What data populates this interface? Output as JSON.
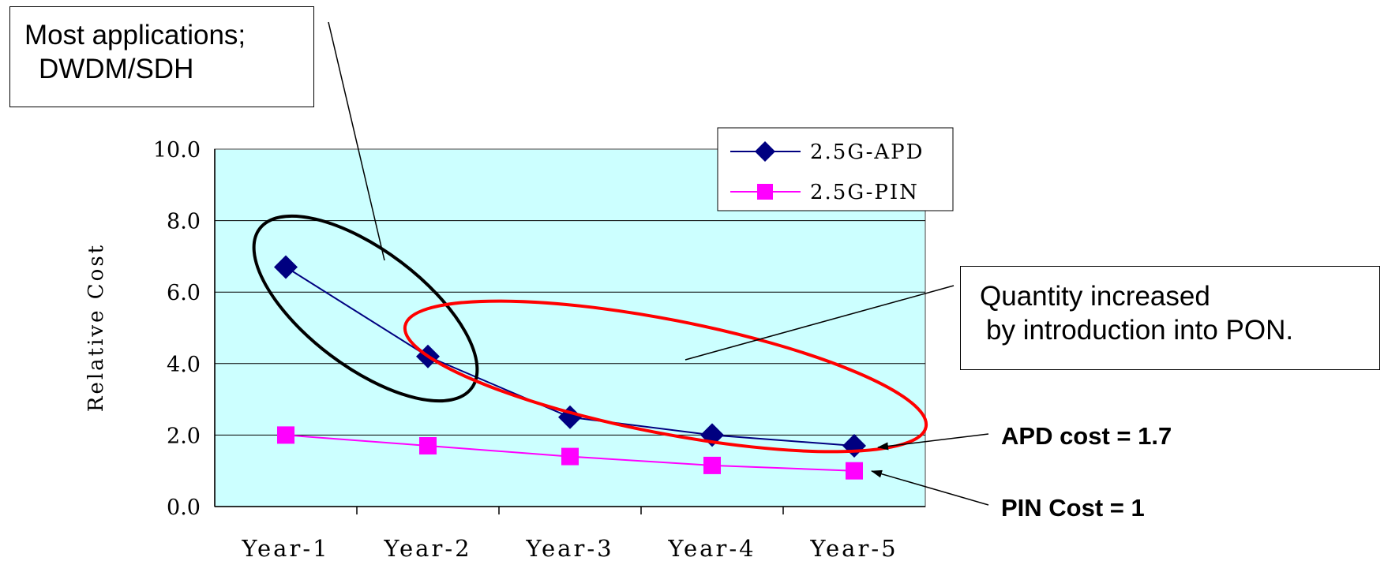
{
  "chart_data": {
    "type": "line",
    "categories": [
      "Year-1",
      "Year-2",
      "Year-3",
      "Year-4",
      "Year-5"
    ],
    "series": [
      {
        "name": "2.5G-APD",
        "values": [
          6.7,
          4.2,
          2.5,
          2.0,
          1.7
        ],
        "color": "#000080",
        "marker": "diamond",
        "marker_color": "#000080"
      },
      {
        "name": "2.5G-PIN",
        "values": [
          2.0,
          1.7,
          1.4,
          1.15,
          1.0
        ],
        "color": "#ff00ff",
        "marker": "square",
        "marker_color": "#ff00ff"
      }
    ],
    "ylabel": "Relative Cost",
    "xlabel": "",
    "ylim": [
      0,
      10
    ],
    "yticks": [
      "0.0",
      "2.0",
      "4.0",
      "6.0",
      "8.0",
      "10.0"
    ],
    "grid": true,
    "plot_background": "#ccffff",
    "legend_position": "top-right",
    "annotations": {
      "box_1": [
        "Most applications;",
        "DWDM/SDH"
      ],
      "box_2": [
        "Quantity increased",
        "by introduction into PON."
      ],
      "apd_callout": "APD cost = 1.7",
      "pin_callout": "PIN Cost = 1"
    },
    "ellipse_colors": {
      "first": "#000000",
      "second": "#ff0000"
    }
  }
}
